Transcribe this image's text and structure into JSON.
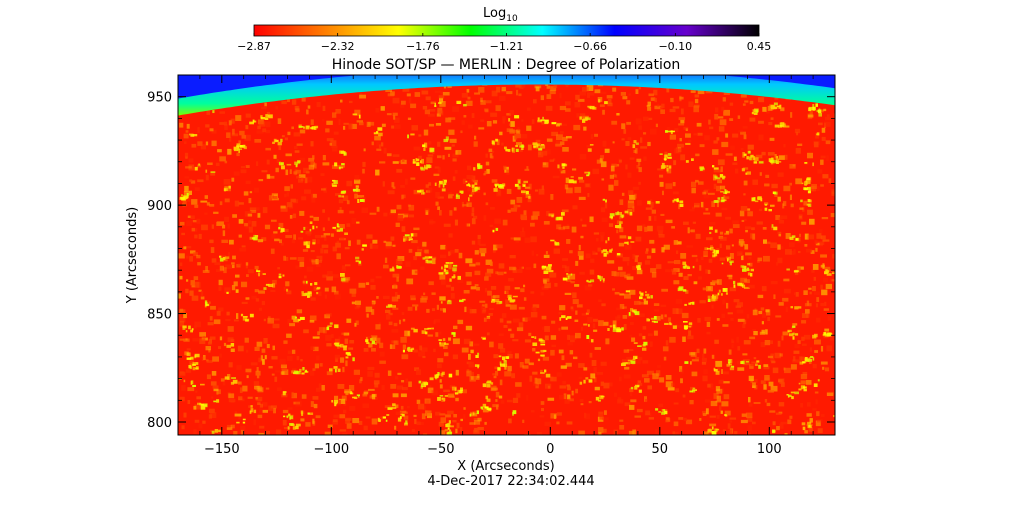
{
  "chart_data": {
    "type": "heatmap",
    "title": "Hinode SOT/SP — MERLIN : Degree of Polarization",
    "colorbar": {
      "label": "Log",
      "label_subscript": "10",
      "ticks": [
        "−2.87",
        "−2.32",
        "−1.76",
        "−1.21",
        "−0.66",
        "−0.10",
        "0.45"
      ],
      "tick_values": [
        -2.87,
        -2.32,
        -1.76,
        -1.21,
        -0.66,
        -0.1,
        0.45
      ],
      "range": [
        -2.87,
        0.45
      ],
      "colormap": [
        "#ff0000",
        "#ff8000",
        "#ffff00",
        "#00ff00",
        "#00ffff",
        "#0000ff",
        "#6600cc",
        "#000000"
      ]
    },
    "xlabel": "X (Arcseconds)",
    "ylabel": "Y (Arcseconds)",
    "xlim": [
      -170,
      130
    ],
    "ylim": [
      794,
      960
    ],
    "xticks": [
      -150,
      -100,
      -50,
      0,
      50,
      100
    ],
    "xtick_labels": [
      "−150",
      "−100",
      "−50",
      "0",
      "50",
      "100"
    ],
    "yticks": [
      800,
      850,
      900,
      950
    ],
    "ytick_labels": [
      "800",
      "850",
      "900",
      "950"
    ],
    "solar_limb": {
      "center_x": -5,
      "center_y": 0,
      "radius": 957
    },
    "background_log_dop": -2.87,
    "limb_log_dop": -1.2,
    "off_disk_log_dop": -0.3,
    "date_label": "4‐Dec‐2017 22:34:02.444"
  }
}
